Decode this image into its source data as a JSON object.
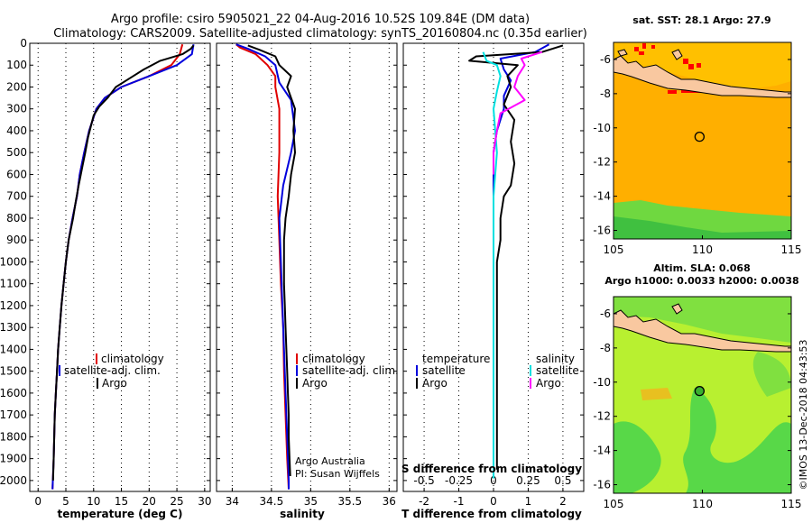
{
  "header": {
    "line1": "Argo profile: csiro 5905021_22 04-Aug-2016 10.52S 109.84E (DM data)",
    "line2": "Climatology: CARS2009. Satellite-adjusted climatology: synTS_20160804.nc (0.35d earlier)"
  },
  "side_label": "©IMOS 13-Dec-2018 04:43:53",
  "chart_data": [
    {
      "type": "line",
      "panel": "temperature",
      "xlabel": "temperature (deg C)",
      "ylabel": "",
      "xlim": [
        -1.5,
        31
      ],
      "ylim": [
        0,
        2050
      ],
      "xticks": [
        0,
        5,
        10,
        15,
        20,
        25,
        30
      ],
      "yticks": [
        0,
        100,
        200,
        300,
        400,
        500,
        600,
        700,
        800,
        900,
        1000,
        1100,
        1200,
        1300,
        1400,
        1500,
        1600,
        1700,
        1800,
        1900,
        2000
      ],
      "grid": "dotted-x",
      "legend": {
        "position": "bottom-right",
        "entries": [
          "climatology",
          "satellite-adj. clim.",
          "Argo"
        ]
      },
      "series": [
        {
          "name": "climatology",
          "color": "#e00000",
          "points": [
            [
              26,
              5
            ],
            [
              25.5,
              50
            ],
            [
              24,
              100
            ],
            [
              20,
              150
            ],
            [
              15,
              200
            ],
            [
              12,
              250
            ],
            [
              10.5,
              300
            ],
            [
              9.2,
              400
            ],
            [
              8.3,
              500
            ],
            [
              7.5,
              600
            ],
            [
              7,
              700
            ],
            [
              6.2,
              800
            ],
            [
              5.5,
              900
            ],
            [
              5,
              1000
            ],
            [
              4.6,
              1100
            ],
            [
              4.2,
              1200
            ],
            [
              3.9,
              1300
            ],
            [
              3.6,
              1400
            ],
            [
              3.4,
              1500
            ],
            [
              3.2,
              1600
            ],
            [
              3,
              1700
            ],
            [
              2.9,
              1800
            ],
            [
              2.8,
              1900
            ],
            [
              2.6,
              2040
            ]
          ]
        },
        {
          "name": "satellite-adj. clim.",
          "color": "#0000dd",
          "points": [
            [
              28,
              5
            ],
            [
              27.7,
              50
            ],
            [
              25,
              100
            ],
            [
              20,
              150
            ],
            [
              15,
              200
            ],
            [
              12,
              250
            ],
            [
              10.5,
              300
            ],
            [
              9.2,
              400
            ],
            [
              8.3,
              500
            ],
            [
              7.5,
              600
            ],
            [
              7,
              700
            ],
            [
              6.2,
              800
            ],
            [
              5.5,
              900
            ],
            [
              5,
              1000
            ],
            [
              4.6,
              1100
            ],
            [
              4.2,
              1200
            ],
            [
              3.9,
              1300
            ],
            [
              3.6,
              1400
            ],
            [
              3.4,
              1500
            ],
            [
              3.2,
              1600
            ],
            [
              3,
              1700
            ],
            [
              2.9,
              1800
            ],
            [
              2.8,
              1900
            ],
            [
              2.6,
              2040
            ]
          ]
        },
        {
          "name": "Argo",
          "color": "#000000",
          "points": [
            [
              28,
              10
            ],
            [
              27.5,
              25
            ],
            [
              26,
              50
            ],
            [
              22,
              80
            ],
            [
              19,
              120
            ],
            [
              16.5,
              160
            ],
            [
              14,
              200
            ],
            [
              12.5,
              250
            ],
            [
              11,
              290
            ],
            [
              10,
              330
            ],
            [
              9.5,
              380
            ],
            [
              9,
              430
            ],
            [
              8.5,
              500
            ],
            [
              8,
              560
            ],
            [
              7.3,
              650
            ],
            [
              6.8,
              720
            ],
            [
              6.3,
              800
            ],
            [
              5.5,
              900
            ],
            [
              5,
              1000
            ],
            [
              4.6,
              1100
            ],
            [
              4.2,
              1200
            ],
            [
              3.9,
              1300
            ],
            [
              3.6,
              1400
            ],
            [
              3.4,
              1500
            ],
            [
              3.2,
              1600
            ],
            [
              3,
              1700
            ],
            [
              2.9,
              1800
            ],
            [
              2.8,
              1900
            ],
            [
              2.7,
              2000
            ]
          ]
        }
      ]
    },
    {
      "type": "line",
      "panel": "salinity",
      "xlabel": "salinity",
      "xlim": [
        33.8,
        36.1
      ],
      "ylim": [
        0,
        2050
      ],
      "xticks": [
        34,
        34.5,
        35,
        35.5,
        36
      ],
      "grid": "dotted-x",
      "legend": {
        "position": "bottom-right",
        "entries": [
          "climatology",
          "satellite-adj. clim.",
          "Argo"
        ]
      },
      "credit": [
        "Argo Australia",
        "PI: Susan Wijffels"
      ],
      "series": [
        {
          "name": "climatology",
          "color": "#e00000",
          "points": [
            [
              34.05,
              5
            ],
            [
              34.1,
              20
            ],
            [
              34.3,
              50
            ],
            [
              34.45,
              100
            ],
            [
              34.55,
              150
            ],
            [
              34.55,
              200
            ],
            [
              34.6,
              300
            ],
            [
              34.6,
              500
            ],
            [
              34.58,
              700
            ],
            [
              34.6,
              900
            ],
            [
              34.62,
              1100
            ],
            [
              34.65,
              1300
            ],
            [
              34.66,
              1500
            ],
            [
              34.68,
              1700
            ],
            [
              34.7,
              1900
            ],
            [
              34.72,
              2040
            ]
          ]
        },
        {
          "name": "satellite-adj. clim.",
          "color": "#0000dd",
          "points": [
            [
              34.05,
              5
            ],
            [
              34.2,
              25
            ],
            [
              34.42,
              60
            ],
            [
              34.55,
              100
            ],
            [
              34.6,
              180
            ],
            [
              34.75,
              260
            ],
            [
              34.8,
              400
            ],
            [
              34.75,
              500
            ],
            [
              34.65,
              650
            ],
            [
              34.6,
              800
            ],
            [
              34.62,
              1000
            ],
            [
              34.64,
              1200
            ],
            [
              34.66,
              1400
            ],
            [
              34.68,
              1600
            ],
            [
              34.7,
              1800
            ],
            [
              34.72,
              2000
            ],
            [
              34.72,
              2040
            ]
          ]
        },
        {
          "name": "Argo",
          "color": "#000000",
          "points": [
            [
              34.2,
              10
            ],
            [
              34.35,
              30
            ],
            [
              34.55,
              60
            ],
            [
              34.6,
              100
            ],
            [
              34.75,
              150
            ],
            [
              34.7,
              200
            ],
            [
              34.8,
              300
            ],
            [
              34.78,
              400
            ],
            [
              34.8,
              500
            ],
            [
              34.75,
              600
            ],
            [
              34.72,
              700
            ],
            [
              34.68,
              800
            ],
            [
              34.66,
              900
            ],
            [
              34.66,
              1000
            ],
            [
              34.66,
              1100
            ],
            [
              34.67,
              1200
            ],
            [
              34.68,
              1300
            ],
            [
              34.69,
              1400
            ],
            [
              34.7,
              1500
            ],
            [
              34.71,
              1600
            ],
            [
              34.72,
              1700
            ],
            [
              34.72,
              1800
            ],
            [
              34.73,
              1900
            ],
            [
              34.74,
              1980
            ]
          ]
        }
      ]
    },
    {
      "type": "line",
      "panel": "difference",
      "xlabel": "T difference from climatology",
      "top_axis_label": "S difference from climatology",
      "xlim": [
        -2.6,
        2.6
      ],
      "ylim": [
        0,
        2050
      ],
      "xticks": [
        -2,
        -1,
        0,
        1,
        2
      ],
      "top_ticks": {
        "values": [
          -2,
          -1,
          0,
          1,
          2
        ],
        "labels": [
          "-0.5",
          "-0.25",
          "0",
          "0.25",
          "0.5"
        ]
      },
      "grid": "dotted-x",
      "legend": {
        "position": "bottom",
        "groups": [
          {
            "heading": "temperature",
            "entries": [
              "satellite",
              "Argo"
            ]
          },
          {
            "heading": "salinity",
            "entries": [
              "satellite",
              "Argo"
            ]
          }
        ]
      },
      "series": [
        {
          "name": "satellite",
          "group": "temperature",
          "color": "#0000dd",
          "points": [
            [
              1.6,
              5
            ],
            [
              1.2,
              40
            ],
            [
              0.2,
              70
            ],
            [
              0.3,
              120
            ],
            [
              0.5,
              170
            ],
            [
              0.3,
              240
            ],
            [
              0.3,
              300
            ],
            [
              0.1,
              400
            ],
            [
              0,
              500
            ],
            [
              0,
              600
            ],
            [
              0,
              800
            ],
            [
              0,
              1000
            ],
            [
              0,
              1200
            ],
            [
              0,
              1400
            ],
            [
              0,
              1600
            ],
            [
              0,
              1800
            ],
            [
              0,
              1990
            ]
          ]
        },
        {
          "name": "Argo",
          "group": "temperature",
          "color": "#000000",
          "points": [
            [
              2,
              10
            ],
            [
              1.4,
              40
            ],
            [
              -0.5,
              60
            ],
            [
              -0.7,
              80
            ],
            [
              0.7,
              100
            ],
            [
              0.4,
              150
            ],
            [
              0.5,
              200
            ],
            [
              0.3,
              280
            ],
            [
              0.6,
              350
            ],
            [
              0.5,
              450
            ],
            [
              0.6,
              550
            ],
            [
              0.5,
              650
            ],
            [
              0.3,
              700
            ],
            [
              0.2,
              800
            ],
            [
              0.2,
              900
            ],
            [
              0.1,
              1000
            ],
            [
              0.1,
              1200
            ],
            [
              0.1,
              1400
            ],
            [
              0.1,
              1600
            ],
            [
              0.1,
              1800
            ],
            [
              0.1,
              1950
            ]
          ]
        },
        {
          "name": "satellite",
          "group": "salinity",
          "color": "#00e0e0",
          "points": [
            [
              -0.3,
              40
            ],
            [
              -0.2,
              80
            ],
            [
              0.1,
              100
            ],
            [
              0.2,
              150
            ],
            [
              0.1,
              220
            ],
            [
              0,
              300
            ],
            [
              0.1,
              500
            ],
            [
              0,
              700
            ],
            [
              0,
              1000
            ],
            [
              0,
              1300
            ],
            [
              0,
              1600
            ],
            [
              0,
              1990
            ]
          ]
        },
        {
          "name": "Argo",
          "group": "salinity",
          "color": "#ff00ff",
          "points": [
            [
              1.4,
              40
            ],
            [
              0.8,
              70
            ],
            [
              0.9,
              100
            ],
            [
              0.7,
              150
            ],
            [
              0.6,
              200
            ],
            [
              0.9,
              260
            ],
            [
              0.2,
              320
            ],
            [
              0.1,
              400
            ],
            [
              0,
              500
            ],
            [
              0,
              600
            ]
          ]
        }
      ]
    },
    {
      "type": "heatmap",
      "panel": "sst-map",
      "title": "sat. SST: 28.1 Argo: 27.9",
      "xlim": [
        105,
        115
      ],
      "ylim": [
        -16.5,
        -5
      ],
      "xticks": [
        105,
        110,
        115
      ],
      "yticks": [
        -6,
        -8,
        -10,
        -12,
        -14,
        -16
      ],
      "marker": [
        109.84,
        -10.52
      ]
    },
    {
      "type": "heatmap",
      "panel": "sla-map",
      "title": [
        "Altim. SLA: 0.068",
        "Argo h1000: 0.0033 h2000: 0.0038"
      ],
      "xlim": [
        105,
        115
      ],
      "ylim": [
        -16.5,
        -5
      ],
      "xticks": [
        105,
        110,
        115
      ],
      "yticks": [
        -6,
        -8,
        -10,
        -12,
        -14,
        -16
      ],
      "marker": [
        109.84,
        -10.52
      ]
    }
  ]
}
